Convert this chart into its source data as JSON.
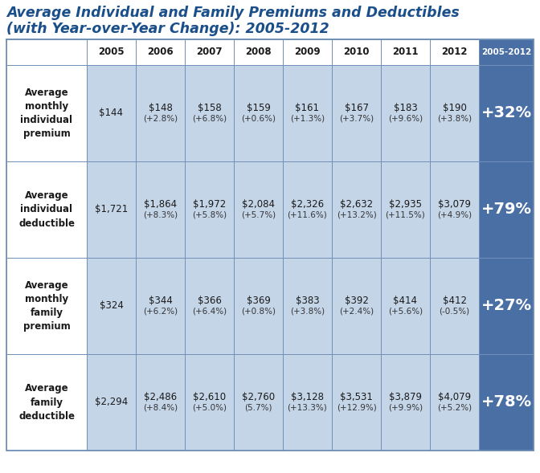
{
  "title_line1": "Average Individual and Family Premiums and Deductibles",
  "title_line2": "(with Year-over-Year Change): 2005-2012",
  "title_color": "#1a4f8a",
  "years": [
    "2005",
    "2006",
    "2007",
    "2008",
    "2009",
    "2010",
    "2011",
    "2012",
    "2005-2012"
  ],
  "row_labels": [
    "Average\nmonthly\nindividual\npremium",
    "Average\nindividual\ndeductible",
    "Average\nmonthly\nfamily\npremium",
    "Average\nfamily\ndeductible"
  ],
  "cell_data": [
    [
      "$144",
      "$148\n(+2.8%)",
      "$158\n(+6.8%)",
      "$159\n(+0.6%)",
      "$161\n(+1.3%)",
      "$167\n(+3.7%)",
      "$183\n(+9.6%)",
      "$190\n(+3.8%)",
      "+32%"
    ],
    [
      "$1,721",
      "$1,864\n(+8.3%)",
      "$1,972\n(+5.8%)",
      "$2,084\n(+5.7%)",
      "$2,326\n(+11.6%)",
      "$2,632\n(+13.2%)",
      "$2,935\n(+11.5%)",
      "$3,079\n(+4.9%)",
      "+79%"
    ],
    [
      "$324",
      "$344\n(+6.2%)",
      "$366\n(+6.4%)",
      "$369\n(+0.8%)",
      "$383\n(+3.8%)",
      "$392\n(+2.4%)",
      "$414\n(+5.6%)",
      "$412\n(-0.5%)",
      "+27%"
    ],
    [
      "$2,294",
      "$2,486\n(+8.4%)",
      "$2,610\n(+5.0%)",
      "$2,760\n(5.7%)",
      "$3,128\n(+13.3%)",
      "$3,531\n(+12.9%)",
      "$3,879\n(+9.9%)",
      "$4,079\n(+5.2%)",
      "+78%"
    ]
  ],
  "light_blue": "#c5d5e8",
  "medium_blue": "#5b7faf",
  "dark_blue": "#4a6fa5",
  "header_bg": "#ffffff",
  "row_label_bg": "#ffffff",
  "border_color": "#7090b8",
  "background": "#ffffff",
  "title_fontsize": 12.5,
  "header_fontsize": 8.5,
  "label_fontsize": 8.5,
  "cell_fontsize": 8.5,
  "cell_pct_fontsize": 7.5,
  "summary_fontsize": 14
}
